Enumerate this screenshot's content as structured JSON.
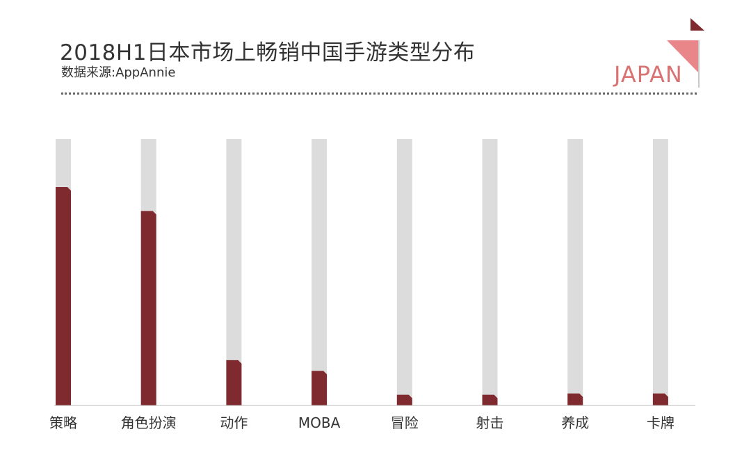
{
  "header": {
    "title": "2018H1日本市场上畅销中国手游类型分布",
    "subtitle": "数据来源:AppAnnie",
    "logo_text": "JAPAN"
  },
  "colors": {
    "bar": "#7f2a2e",
    "track": "#dcdcdc",
    "logo_dark": "#7f2a2e",
    "logo_light": "#e9868a"
  },
  "chart_data": {
    "type": "bar",
    "title": "2018H1日本市场上畅销中国手游类型分布",
    "xlabel": "",
    "ylabel": "",
    "categories": [
      "策略",
      "角色扮演",
      "动作",
      "MOBA",
      "冒险",
      "射击",
      "养成",
      "卡牌"
    ],
    "values": [
      82,
      73,
      17,
      13,
      4,
      4,
      4.5,
      4.5
    ],
    "ylim": [
      0,
      100
    ],
    "grid": false,
    "legend": "none"
  }
}
